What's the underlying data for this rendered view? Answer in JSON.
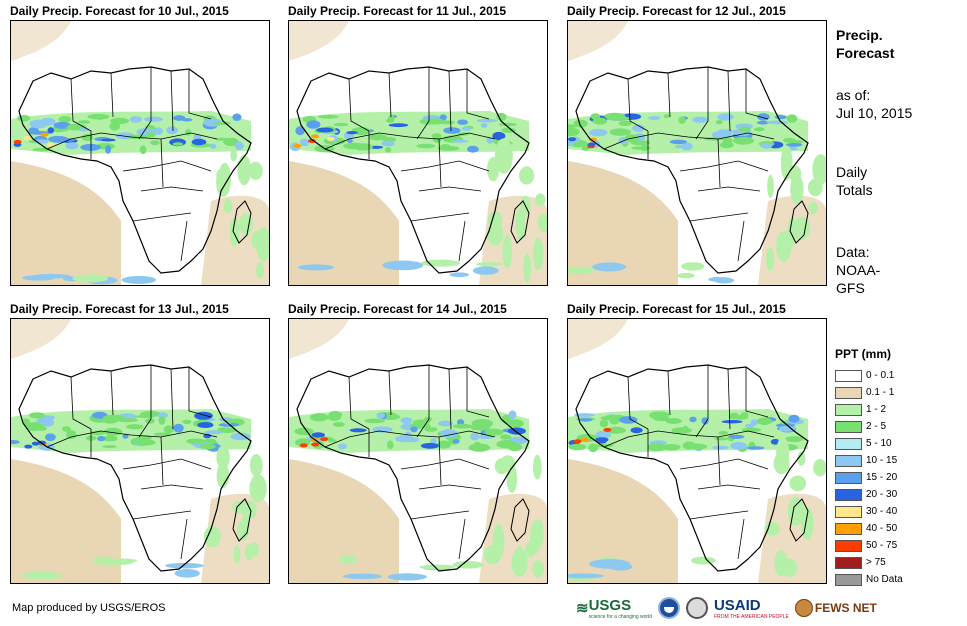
{
  "panels": [
    {
      "title": "Daily Precip. Forecast for 10 Jul., 2015"
    },
    {
      "title": "Daily Precip. Forecast for 11 Jul., 2015"
    },
    {
      "title": "Daily Precip. Forecast for 12 Jul., 2015"
    },
    {
      "title": "Daily Precip. Forecast for 13 Jul., 2015"
    },
    {
      "title": "Daily Precip. Forecast for 14 Jul., 2015"
    },
    {
      "title": "Daily Precip. Forecast for 15 Jul., 2015"
    }
  ],
  "sidebar": {
    "title_line1": "Precip.",
    "title_line2": "Forecast",
    "asof_label": "as of:",
    "asof_date": "Jul 10, 2015",
    "totals_line1": "Daily",
    "totals_line2": "Totals",
    "data_line1": "Data:",
    "data_line2": "NOAA-",
    "data_line3": "GFS"
  },
  "legend": {
    "title": "PPT (mm)",
    "items": [
      {
        "label": "0 - 0.1",
        "color": "#ffffff"
      },
      {
        "label": "0.1 - 1",
        "color": "#e8d6b4"
      },
      {
        "label": "1 - 2",
        "color": "#b4f0a8"
      },
      {
        "label": "2 - 5",
        "color": "#78e070"
      },
      {
        "label": "5 - 10",
        "color": "#b4ecf4"
      },
      {
        "label": "10 - 15",
        "color": "#8cc8f0"
      },
      {
        "label": "15 - 20",
        "color": "#5aa0ec"
      },
      {
        "label": "20 - 30",
        "color": "#2864e0"
      },
      {
        "label": "30 - 40",
        "color": "#ffe88c"
      },
      {
        "label": "40 - 50",
        "color": "#ffa000"
      },
      {
        "label": "50 - 75",
        "color": "#ff3c00"
      },
      {
        "label": "> 75",
        "color": "#a01e1e"
      },
      {
        "label": "No Data",
        "color": "#999999"
      }
    ]
  },
  "credit": "Map produced by USGS/EROS",
  "logos": {
    "usgs": "USGS",
    "usgs_sub": "science for a changing world",
    "usaid": "USAID",
    "usaid_sub": "FROM THE AMERICAN PEOPLE",
    "fews": "FEWS NET"
  }
}
